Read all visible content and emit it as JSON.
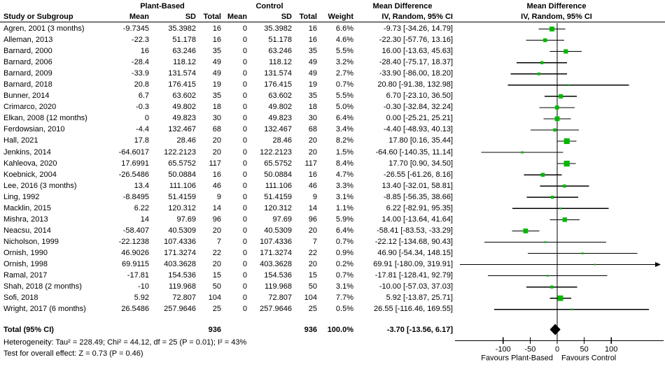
{
  "header": {
    "group1": "Plant-Based",
    "group2": "Control",
    "study": "Study or Subgroup",
    "mean": "Mean",
    "sd": "SD",
    "total": "Total",
    "weight": "Weight",
    "md_title": "Mean Difference",
    "md_method": "IV, Random, 95% CI"
  },
  "footer": {
    "heterogeneity": "Heterogeneity: Tau² = 228.49; Chi² = 44.12, df = 25 (P = 0.01); I² = 43%",
    "overall_effect": "Test for overall effect: Z = 0.73 (P = 0.46)"
  },
  "chart_data": {
    "type": "scatter",
    "subtype": "forest_plot_meta_analysis",
    "effect_measure": "Mean Difference, IV, Random, 95% CI",
    "marker_color": "#00b800",
    "x_axis": {
      "ticks": [
        -100,
        -50,
        0,
        50,
        100
      ],
      "visible_range": [
        -186,
        192
      ],
      "label_left": "Favours Plant-Based",
      "label_right": "Favours Control"
    },
    "studies": [
      {
        "name": "Agren, 2001 (3 months)",
        "mean": "-9.7345",
        "sd": "35.3982",
        "total": "16",
        "c_mean": "0",
        "c_sd": "35.3982",
        "c_total": "16",
        "weight": "6.6%",
        "ci_text": "-9.73 [-34.26, 14.79]",
        "est": -9.73,
        "lo": -34.26,
        "hi": 14.79,
        "w": 6.6
      },
      {
        "name": "Alleman, 2013",
        "mean": "-22.3",
        "sd": "51.178",
        "total": "16",
        "c_mean": "0",
        "c_sd": "51.178",
        "c_total": "16",
        "weight": "4.6%",
        "ci_text": "-22.30 [-57.76, 13.16]",
        "est": -22.3,
        "lo": -57.76,
        "hi": 13.16,
        "w": 4.6
      },
      {
        "name": "Barnard, 2000",
        "mean": "16",
        "sd": "63.246",
        "total": "35",
        "c_mean": "0",
        "c_sd": "63.246",
        "c_total": "35",
        "weight": "5.5%",
        "ci_text": "16.00 [-13.63, 45.63]",
        "est": 16,
        "lo": -13.63,
        "hi": 45.63,
        "w": 5.5
      },
      {
        "name": "Barnard, 2006",
        "mean": "-28.4",
        "sd": "118.12",
        "total": "49",
        "c_mean": "0",
        "c_sd": "118.12",
        "c_total": "49",
        "weight": "3.2%",
        "ci_text": "-28.40 [-75.17, 18.37]",
        "est": -28.4,
        "lo": -75.17,
        "hi": 18.37,
        "w": 3.2
      },
      {
        "name": "Barnard, 2009",
        "mean": "-33.9",
        "sd": "131.574",
        "total": "49",
        "c_mean": "0",
        "c_sd": "131.574",
        "c_total": "49",
        "weight": "2.7%",
        "ci_text": "-33.90 [-86.00, 18.20]",
        "est": -33.9,
        "lo": -86.0,
        "hi": 18.2,
        "w": 2.7
      },
      {
        "name": "Barnard, 2018",
        "mean": "20.8",
        "sd": "176.415",
        "total": "19",
        "c_mean": "0",
        "c_sd": "176.415",
        "c_total": "19",
        "weight": "0.7%",
        "ci_text": "20.80 [-91.38, 132.98]",
        "est": 20.8,
        "lo": -91.38,
        "hi": 132.98,
        "w": 0.7
      },
      {
        "name": "Bunner, 2014",
        "mean": "6.7",
        "sd": "63.602",
        "total": "35",
        "c_mean": "0",
        "c_sd": "63.602",
        "c_total": "35",
        "weight": "5.5%",
        "ci_text": "6.70 [-23.10, 36.50]",
        "est": 6.7,
        "lo": -23.1,
        "hi": 36.5,
        "w": 5.5
      },
      {
        "name": "Crimarco, 2020",
        "mean": "-0.3",
        "sd": "49.802",
        "total": "18",
        "c_mean": "0",
        "c_sd": "49.802",
        "c_total": "18",
        "weight": "5.0%",
        "ci_text": "-0.30 [-32.84, 32.24]",
        "est": -0.3,
        "lo": -32.84,
        "hi": 32.24,
        "w": 5.0
      },
      {
        "name": "Elkan, 2008 (12 months)",
        "mean": "0",
        "sd": "49.823",
        "total": "30",
        "c_mean": "0",
        "c_sd": "49.823",
        "c_total": "30",
        "weight": "6.4%",
        "ci_text": "0.00 [-25.21, 25.21]",
        "est": 0,
        "lo": -25.21,
        "hi": 25.21,
        "w": 6.4
      },
      {
        "name": "Ferdowsian, 2010",
        "mean": "-4.4",
        "sd": "132.467",
        "total": "68",
        "c_mean": "0",
        "c_sd": "132.467",
        "c_total": "68",
        "weight": "3.4%",
        "ci_text": "-4.40 [-48.93, 40.13]",
        "est": -4.4,
        "lo": -48.93,
        "hi": 40.13,
        "w": 3.4
      },
      {
        "name": "Hall, 2021",
        "mean": "17.8",
        "sd": "28.46",
        "total": "20",
        "c_mean": "0",
        "c_sd": "28.46",
        "c_total": "20",
        "weight": "8.2%",
        "ci_text": "17.80 [0.16, 35.44]",
        "est": 17.8,
        "lo": 0.16,
        "hi": 35.44,
        "w": 8.2
      },
      {
        "name": "Jenkins, 2014",
        "mean": "-64.6017",
        "sd": "122.2123",
        "total": "20",
        "c_mean": "0",
        "c_sd": "122.2123",
        "c_total": "20",
        "weight": "1.5%",
        "ci_text": "-64.60 [-140.35, 11.14]",
        "est": -64.6,
        "lo": -140.35,
        "hi": 11.14,
        "w": 1.5
      },
      {
        "name": "Kahleova, 2020",
        "mean": "17.6991",
        "sd": "65.5752",
        "total": "117",
        "c_mean": "0",
        "c_sd": "65.5752",
        "c_total": "117",
        "weight": "8.4%",
        "ci_text": "17.70 [0.90, 34.50]",
        "est": 17.7,
        "lo": 0.9,
        "hi": 34.5,
        "w": 8.4
      },
      {
        "name": "Koebnick, 2004",
        "mean": "-26.5486",
        "sd": "50.0884",
        "total": "16",
        "c_mean": "0",
        "c_sd": "50.0884",
        "c_total": "16",
        "weight": "4.7%",
        "ci_text": "-26.55 [-61.26, 8.16]",
        "est": -26.55,
        "lo": -61.26,
        "hi": 8.16,
        "w": 4.7
      },
      {
        "name": "Lee, 2016 (3 months)",
        "mean": "13.4",
        "sd": "111.106",
        "total": "46",
        "c_mean": "0",
        "c_sd": "111.106",
        "c_total": "46",
        "weight": "3.3%",
        "ci_text": "13.40 [-32.01, 58.81]",
        "est": 13.4,
        "lo": -32.01,
        "hi": 58.81,
        "w": 3.3
      },
      {
        "name": "Ling, 1992",
        "mean": "-8.8495",
        "sd": "51.4159",
        "total": "9",
        "c_mean": "0",
        "c_sd": "51.4159",
        "c_total": "9",
        "weight": "3.1%",
        "ci_text": "-8.85 [-56.35, 38.66]",
        "est": -8.85,
        "lo": -56.35,
        "hi": 38.66,
        "w": 3.1
      },
      {
        "name": "Macklin, 2015",
        "mean": "6.22",
        "sd": "120.312",
        "total": "14",
        "c_mean": "0",
        "c_sd": "120.312",
        "c_total": "14",
        "weight": "1.1%",
        "ci_text": "6.22 [-82.91, 95.35]",
        "est": 6.22,
        "lo": -82.91,
        "hi": 95.35,
        "w": 1.1
      },
      {
        "name": "Mishra, 2013",
        "mean": "14",
        "sd": "97.69",
        "total": "96",
        "c_mean": "0",
        "c_sd": "97.69",
        "c_total": "96",
        "weight": "5.9%",
        "ci_text": "14.00 [-13.64, 41.64]",
        "est": 14,
        "lo": -13.64,
        "hi": 41.64,
        "w": 5.9
      },
      {
        "name": "Neacsu, 2014",
        "mean": "-58.407",
        "sd": "40.5309",
        "total": "20",
        "c_mean": "0",
        "c_sd": "40.5309",
        "c_total": "20",
        "weight": "6.4%",
        "ci_text": "-58.41 [-83.53, -33.29]",
        "est": -58.41,
        "lo": -83.53,
        "hi": -33.29,
        "w": 6.4
      },
      {
        "name": "Nicholson, 1999",
        "mean": "-22.1238",
        "sd": "107.4336",
        "total": "7",
        "c_mean": "0",
        "c_sd": "107.4336",
        "c_total": "7",
        "weight": "0.7%",
        "ci_text": "-22.12 [-134.68, 90.43]",
        "est": -22.12,
        "lo": -134.68,
        "hi": 90.43,
        "w": 0.7
      },
      {
        "name": "Ornish, 1990",
        "mean": "46.9026",
        "sd": "171.3274",
        "total": "22",
        "c_mean": "0",
        "c_sd": "171.3274",
        "c_total": "22",
        "weight": "0.9%",
        "ci_text": "46.90 [-54.34, 148.15]",
        "est": 46.9,
        "lo": -54.34,
        "hi": 148.15,
        "w": 0.9
      },
      {
        "name": "Ornish, 1998",
        "mean": "69.9115",
        "sd": "403.3628",
        "total": "20",
        "c_mean": "0",
        "c_sd": "403.3628",
        "c_total": "20",
        "weight": "0.2%",
        "ci_text": "69.91 [-180.09, 319.91]",
        "est": 69.91,
        "lo": -180.09,
        "hi": 319.91,
        "w": 0.2
      },
      {
        "name": "Ramal, 2017",
        "mean": "-17.81",
        "sd": "154.536",
        "total": "15",
        "c_mean": "0",
        "c_sd": "154.536",
        "c_total": "15",
        "weight": "0.7%",
        "ci_text": "-17.81 [-128.41, 92.79]",
        "est": -17.81,
        "lo": -128.41,
        "hi": 92.79,
        "w": 0.7
      },
      {
        "name": "Shah, 2018 (2 months)",
        "mean": "-10",
        "sd": "119.968",
        "total": "50",
        "c_mean": "0",
        "c_sd": "119.968",
        "c_total": "50",
        "weight": "3.1%",
        "ci_text": "-10.00 [-57.03, 37.03]",
        "est": -10,
        "lo": -57.03,
        "hi": 37.03,
        "w": 3.1
      },
      {
        "name": "Sofi, 2018",
        "mean": "5.92",
        "sd": "72.807",
        "total": "104",
        "c_mean": "0",
        "c_sd": "72.807",
        "c_total": "104",
        "weight": "7.7%",
        "ci_text": "5.92 [-13.87, 25.71]",
        "est": 5.92,
        "lo": -13.87,
        "hi": 25.71,
        "w": 7.7
      },
      {
        "name": "Wright, 2017 (6 months)",
        "mean": "26.5486",
        "sd": "257.9646",
        "total": "25",
        "c_mean": "0",
        "c_sd": "257.9646",
        "c_total": "25",
        "weight": "0.5%",
        "ci_text": "26.55 [-116.46, 169.55]",
        "est": 26.55,
        "lo": -116.46,
        "hi": 169.55,
        "w": 0.5
      }
    ],
    "total": {
      "label": "Total (95% CI)",
      "total1": "936",
      "total2": "936",
      "weight": "100.0%",
      "ci_text": "-3.70 [-13.56, 6.17]",
      "est": -3.7,
      "lo": -13.56,
      "hi": 6.17
    },
    "heterogeneity": {
      "tau2": 228.49,
      "chi2": 44.12,
      "df": 25,
      "p": 0.01,
      "i2_pct": 43
    },
    "overall_effect": {
      "z": 0.73,
      "p": 0.46
    }
  }
}
